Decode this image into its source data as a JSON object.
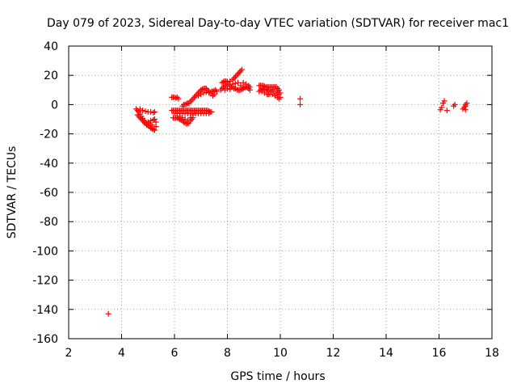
{
  "chart_data": {
    "type": "scatter",
    "title": "Day 079 of 2023, Sidereal Day-to-day VTEC variation (SDTVAR) for receiver mac1",
    "xlabel": "GPS time / hours",
    "ylabel": "SDTVAR / TECUs",
    "xlim": [
      2,
      18
    ],
    "ylim": [
      -160,
      40
    ],
    "xticks": [
      2,
      4,
      6,
      8,
      10,
      12,
      14,
      16,
      18
    ],
    "yticks": [
      -160,
      -140,
      -120,
      -100,
      -80,
      -60,
      -40,
      -20,
      0,
      20,
      40
    ],
    "grid": true,
    "marker": "+",
    "color": "#ff0000",
    "series": [
      {
        "name": "SDTVAR",
        "points": [
          [
            3.5,
            -143.0
          ],
          [
            4.55,
            -3.0
          ],
          [
            4.6,
            -4.0
          ],
          [
            4.65,
            -5.0
          ],
          [
            4.7,
            -6.5
          ],
          [
            4.75,
            -8.0
          ],
          [
            4.8,
            -9.5
          ],
          [
            4.85,
            -11.0
          ],
          [
            4.9,
            -12.0
          ],
          [
            4.95,
            -13.0
          ],
          [
            5.0,
            -14.0
          ],
          [
            5.05,
            -15.0
          ],
          [
            5.1,
            -16.0
          ],
          [
            5.15,
            -16.5
          ],
          [
            5.2,
            -17.0
          ],
          [
            5.25,
            -17.5
          ],
          [
            4.6,
            -7.0
          ],
          [
            4.7,
            -9.0
          ],
          [
            4.8,
            -11.0
          ],
          [
            4.9,
            -13.0
          ],
          [
            5.0,
            -12.0
          ],
          [
            5.1,
            -11.0
          ],
          [
            5.2,
            -10.5
          ],
          [
            5.25,
            -10.0
          ],
          [
            4.7,
            -3.0
          ],
          [
            4.8,
            -4.0
          ],
          [
            4.9,
            -4.5
          ],
          [
            5.0,
            -5.0
          ],
          [
            5.1,
            -5.0
          ],
          [
            5.2,
            -5.5
          ],
          [
            5.25,
            -5.0
          ],
          [
            4.65,
            -8.0
          ],
          [
            4.75,
            -10.0
          ],
          [
            4.85,
            -12.0
          ],
          [
            4.95,
            -14.0
          ],
          [
            5.05,
            -13.0
          ],
          [
            5.15,
            -14.0
          ],
          [
            5.3,
            -15.0
          ],
          [
            5.3,
            -12.0
          ],
          [
            5.9,
            5.0
          ],
          [
            5.95,
            5.0
          ],
          [
            6.0,
            5.0
          ],
          [
            6.05,
            4.5
          ],
          [
            6.1,
            5.0
          ],
          [
            6.15,
            4.0
          ],
          [
            5.9,
            -4.0
          ],
          [
            5.95,
            -4.0
          ],
          [
            6.0,
            -4.0
          ],
          [
            6.05,
            -4.0
          ],
          [
            6.1,
            -4.0
          ],
          [
            6.15,
            -4.0
          ],
          [
            6.2,
            -4.0
          ],
          [
            6.25,
            -4.0
          ],
          [
            6.3,
            -4.0
          ],
          [
            6.35,
            -4.0
          ],
          [
            6.4,
            -4.0
          ],
          [
            6.45,
            -4.0
          ],
          [
            6.5,
            -4.0
          ],
          [
            6.55,
            -4.0
          ],
          [
            6.6,
            -4.0
          ],
          [
            6.65,
            -4.0
          ],
          [
            6.7,
            -4.0
          ],
          [
            6.75,
            -4.0
          ],
          [
            6.8,
            -4.0
          ],
          [
            6.85,
            -4.0
          ],
          [
            6.9,
            -4.0
          ],
          [
            6.95,
            -4.0
          ],
          [
            7.0,
            -4.0
          ],
          [
            7.05,
            -4.0
          ],
          [
            7.1,
            -4.0
          ],
          [
            7.15,
            -4.0
          ],
          [
            7.2,
            -4.0
          ],
          [
            7.25,
            -4.0
          ],
          [
            7.3,
            -4.5
          ],
          [
            7.35,
            -5.0
          ],
          [
            7.4,
            -5.0
          ],
          [
            6.0,
            -6.0
          ],
          [
            6.1,
            -6.0
          ],
          [
            6.2,
            -6.0
          ],
          [
            6.3,
            -6.0
          ],
          [
            6.4,
            -6.0
          ],
          [
            6.5,
            -6.0
          ],
          [
            6.6,
            -6.0
          ],
          [
            6.7,
            -6.0
          ],
          [
            6.8,
            -6.0
          ],
          [
            6.9,
            -6.0
          ],
          [
            7.0,
            -6.0
          ],
          [
            7.1,
            -6.0
          ],
          [
            7.2,
            -6.0
          ],
          [
            7.3,
            -6.0
          ],
          [
            5.95,
            -9.0
          ],
          [
            6.0,
            -9.0
          ],
          [
            6.05,
            -9.0
          ],
          [
            6.1,
            -9.0
          ],
          [
            6.15,
            -9.5
          ],
          [
            6.2,
            -10.0
          ],
          [
            6.25,
            -10.5
          ],
          [
            6.3,
            -11.0
          ],
          [
            6.35,
            -12.0
          ],
          [
            6.4,
            -12.5
          ],
          [
            6.45,
            -13.0
          ],
          [
            6.5,
            -13.0
          ],
          [
            6.55,
            -12.5
          ],
          [
            6.6,
            -11.0
          ],
          [
            6.65,
            -10.0
          ],
          [
            6.7,
            -9.0
          ],
          [
            6.2,
            -8.0
          ],
          [
            6.3,
            -9.0
          ],
          [
            6.4,
            -10.0
          ],
          [
            6.5,
            -11.0
          ],
          [
            6.6,
            -9.0
          ],
          [
            6.7,
            -7.0
          ],
          [
            6.3,
            -1.0
          ],
          [
            6.35,
            0.0
          ],
          [
            6.4,
            0.0
          ],
          [
            6.45,
            0.5
          ],
          [
            6.5,
            1.0
          ],
          [
            6.55,
            1.0
          ],
          [
            6.6,
            2.0
          ],
          [
            6.65,
            3.0
          ],
          [
            6.7,
            4.0
          ],
          [
            6.75,
            5.0
          ],
          [
            6.8,
            6.0
          ],
          [
            6.85,
            7.0
          ],
          [
            6.9,
            8.0
          ],
          [
            6.95,
            9.0
          ],
          [
            7.0,
            10.0
          ],
          [
            7.05,
            10.5
          ],
          [
            7.1,
            11.0
          ],
          [
            7.15,
            11.0
          ],
          [
            7.2,
            11.0
          ],
          [
            7.25,
            10.0
          ],
          [
            7.3,
            9.0
          ],
          [
            7.35,
            8.0
          ],
          [
            7.4,
            8.0
          ],
          [
            6.9,
            6.0
          ],
          [
            7.0,
            7.0
          ],
          [
            7.1,
            8.0
          ],
          [
            7.2,
            8.5
          ],
          [
            7.3,
            8.0
          ],
          [
            7.4,
            9.0
          ],
          [
            7.45,
            9.0
          ],
          [
            7.5,
            9.5
          ],
          [
            7.55,
            10.0
          ],
          [
            7.6,
            9.0
          ],
          [
            7.5,
            7.0
          ],
          [
            7.45,
            6.0
          ],
          [
            7.75,
            10.0
          ],
          [
            7.8,
            11.0
          ],
          [
            7.85,
            12.0
          ],
          [
            7.9,
            13.0
          ],
          [
            7.95,
            13.0
          ],
          [
            8.0,
            14.0
          ],
          [
            8.05,
            14.0
          ],
          [
            8.1,
            13.0
          ],
          [
            8.15,
            12.0
          ],
          [
            8.2,
            12.0
          ],
          [
            8.25,
            11.0
          ],
          [
            8.3,
            11.0
          ],
          [
            8.35,
            10.5
          ],
          [
            8.4,
            10.0
          ],
          [
            8.45,
            10.0
          ],
          [
            8.5,
            10.0
          ],
          [
            8.55,
            10.5
          ],
          [
            8.6,
            11.0
          ],
          [
            8.65,
            11.5
          ],
          [
            8.7,
            12.0
          ],
          [
            8.75,
            12.0
          ],
          [
            8.8,
            11.0
          ],
          [
            8.85,
            10.0
          ],
          [
            7.8,
            15.0
          ],
          [
            7.85,
            15.5
          ],
          [
            7.9,
            16.0
          ],
          [
            7.95,
            16.0
          ],
          [
            8.0,
            15.5
          ],
          [
            8.1,
            16.0
          ],
          [
            8.2,
            17.0
          ],
          [
            8.25,
            18.0
          ],
          [
            8.3,
            19.0
          ],
          [
            8.35,
            20.0
          ],
          [
            8.4,
            21.0
          ],
          [
            8.45,
            22.0
          ],
          [
            8.5,
            23.0
          ],
          [
            8.55,
            24.0
          ],
          [
            8.6,
            15.0
          ],
          [
            8.7,
            14.0
          ],
          [
            8.8,
            13.0
          ],
          [
            8.85,
            12.0
          ],
          [
            7.9,
            10.0
          ],
          [
            8.0,
            11.0
          ],
          [
            8.1,
            10.5
          ],
          [
            8.2,
            14.0
          ],
          [
            8.3,
            14.5
          ],
          [
            8.4,
            15.0
          ],
          [
            8.5,
            13.0
          ],
          [
            8.6,
            12.0
          ],
          [
            9.2,
            13.0
          ],
          [
            9.25,
            13.0
          ],
          [
            9.3,
            13.0
          ],
          [
            9.35,
            13.0
          ],
          [
            9.4,
            12.5
          ],
          [
            9.45,
            12.0
          ],
          [
            9.5,
            12.0
          ],
          [
            9.55,
            12.0
          ],
          [
            9.6,
            12.0
          ],
          [
            9.65,
            12.0
          ],
          [
            9.7,
            12.0
          ],
          [
            9.75,
            12.0
          ],
          [
            9.8,
            12.0
          ],
          [
            9.85,
            12.0
          ],
          [
            9.9,
            11.0
          ],
          [
            9.95,
            10.0
          ],
          [
            9.2,
            9.0
          ],
          [
            9.3,
            9.0
          ],
          [
            9.4,
            8.0
          ],
          [
            9.5,
            7.0
          ],
          [
            9.55,
            7.0
          ],
          [
            9.6,
            7.0
          ],
          [
            9.7,
            7.0
          ],
          [
            9.8,
            6.0
          ],
          [
            9.9,
            5.0
          ],
          [
            9.95,
            4.0
          ],
          [
            10.0,
            5.0
          ],
          [
            9.25,
            10.0
          ],
          [
            9.35,
            10.5
          ],
          [
            9.45,
            10.0
          ],
          [
            9.55,
            9.5
          ],
          [
            9.65,
            9.0
          ],
          [
            9.75,
            9.0
          ],
          [
            9.85,
            8.0
          ],
          [
            9.95,
            7.0
          ],
          [
            10.0,
            8.0
          ],
          [
            9.3,
            11.0
          ],
          [
            9.5,
            10.5
          ],
          [
            9.7,
            10.0
          ],
          [
            9.9,
            9.0
          ],
          [
            10.75,
            4.0
          ],
          [
            10.75,
            0.0
          ],
          [
            16.05,
            -3.5
          ],
          [
            16.1,
            -2.0
          ],
          [
            16.15,
            1.0
          ],
          [
            16.2,
            2.5
          ],
          [
            16.3,
            -4.0
          ],
          [
            16.55,
            -1.0
          ],
          [
            16.6,
            0.0
          ],
          [
            16.9,
            -3.0
          ],
          [
            16.95,
            -2.0
          ],
          [
            17.0,
            -1.0
          ],
          [
            17.0,
            0.0
          ],
          [
            17.05,
            1.0
          ],
          [
            17.0,
            -3.5
          ]
        ]
      }
    ]
  }
}
